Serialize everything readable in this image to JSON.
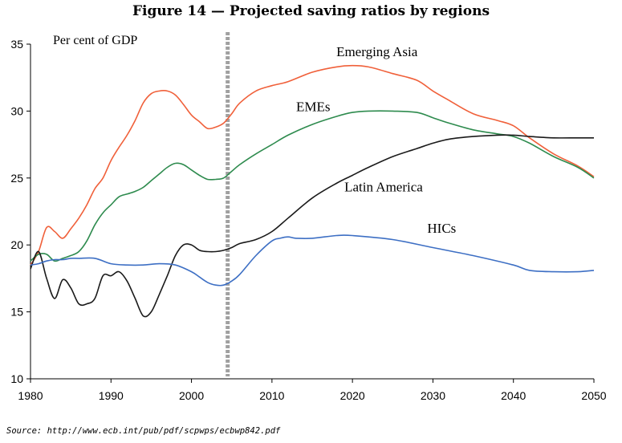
{
  "title": "Figure 14 — Projected saving ratios by regions",
  "source": "Source: http://www.ecb.int/pub/pdf/scpwps/ecbwp842.pdf",
  "chart_data": {
    "type": "line",
    "title": "Figure 14 — Projected saving ratios by regions",
    "ylabel": "Per cent of GDP",
    "xlabel": "",
    "xlim": [
      1980,
      2050
    ],
    "ylim": [
      10,
      35
    ],
    "xticks": [
      1980,
      1990,
      2000,
      2010,
      2020,
      2030,
      2040,
      2050
    ],
    "yticks": [
      10,
      15,
      20,
      25,
      30,
      35
    ],
    "vline": 2004.5,
    "series": [
      {
        "name": "Emerging Asia",
        "color": "#f0603a",
        "x": [
          1980,
          1981,
          1982,
          1983,
          1984,
          1985,
          1986,
          1987,
          1988,
          1989,
          1990,
          1991,
          1992,
          1993,
          1994,
          1995,
          1996,
          1997,
          1998,
          1999,
          2000,
          2001,
          2002,
          2003,
          2004,
          2005,
          2006,
          2008,
          2010,
          2012,
          2015,
          2018,
          2020,
          2022,
          2025,
          2028,
          2030,
          2032,
          2035,
          2038,
          2040,
          2042,
          2045,
          2048,
          2050
        ],
        "y": [
          18.5,
          19.5,
          21.3,
          21.0,
          20.5,
          21.2,
          22.0,
          23.0,
          24.2,
          25.0,
          26.3,
          27.3,
          28.2,
          29.3,
          30.6,
          31.3,
          31.5,
          31.5,
          31.2,
          30.5,
          29.7,
          29.2,
          28.7,
          28.8,
          29.1,
          29.8,
          30.6,
          31.5,
          31.9,
          32.2,
          32.9,
          33.3,
          33.4,
          33.3,
          32.8,
          32.3,
          31.5,
          30.8,
          29.8,
          29.3,
          28.9,
          28.0,
          26.8,
          25.9,
          25.1
        ]
      },
      {
        "name": "EMEs",
        "color": "#2e8b4e",
        "x": [
          1980,
          1981,
          1982,
          1983,
          1984,
          1985,
          1986,
          1987,
          1988,
          1989,
          1990,
          1991,
          1992,
          1993,
          1994,
          1995,
          1996,
          1997,
          1998,
          1999,
          2000,
          2001,
          2002,
          2003,
          2004,
          2005,
          2006,
          2008,
          2010,
          2012,
          2015,
          2018,
          2020,
          2022,
          2025,
          2028,
          2030,
          2032,
          2035,
          2038,
          2040,
          2042,
          2045,
          2048,
          2050
        ],
        "y": [
          18.8,
          19.3,
          19.3,
          18.8,
          19.0,
          19.2,
          19.5,
          20.3,
          21.5,
          22.4,
          23.0,
          23.6,
          23.8,
          24.0,
          24.3,
          24.8,
          25.3,
          25.8,
          26.1,
          26.0,
          25.6,
          25.2,
          24.9,
          24.9,
          25.0,
          25.5,
          26.0,
          26.8,
          27.5,
          28.2,
          29.0,
          29.6,
          29.9,
          30.0,
          30.0,
          29.9,
          29.5,
          29.1,
          28.6,
          28.3,
          28.1,
          27.6,
          26.6,
          25.8,
          25.0
        ]
      },
      {
        "name": "Latin America",
        "color": "#1a1a1a",
        "x": [
          1980,
          1981,
          1982,
          1983,
          1984,
          1985,
          1986,
          1987,
          1988,
          1989,
          1990,
          1991,
          1992,
          1993,
          1994,
          1995,
          1996,
          1997,
          1998,
          1999,
          2000,
          2001,
          2002,
          2003,
          2004,
          2005,
          2006,
          2008,
          2010,
          2012,
          2015,
          2018,
          2020,
          2022,
          2025,
          2028,
          2030,
          2032,
          2035,
          2038,
          2040,
          2042,
          2045,
          2048,
          2050
        ],
        "y": [
          18.2,
          19.5,
          17.5,
          16.0,
          17.4,
          16.8,
          15.6,
          15.6,
          16.0,
          17.7,
          17.7,
          18.0,
          17.3,
          16.0,
          14.7,
          15.0,
          16.3,
          17.7,
          19.2,
          20.0,
          20.0,
          19.6,
          19.5,
          19.5,
          19.6,
          19.8,
          20.1,
          20.4,
          21.0,
          22.0,
          23.5,
          24.6,
          25.2,
          25.8,
          26.6,
          27.2,
          27.6,
          27.9,
          28.1,
          28.2,
          28.2,
          28.1,
          28.0,
          28.0,
          28.0
        ]
      },
      {
        "name": "HICs",
        "color": "#3d6fc4",
        "x": [
          1980,
          1981,
          1982,
          1983,
          1984,
          1985,
          1986,
          1988,
          1990,
          1992,
          1994,
          1996,
          1998,
          2000,
          2001,
          2002,
          2003,
          2004,
          2005,
          2006,
          2008,
          2010,
          2011,
          2012,
          2013,
          2015,
          2018,
          2020,
          2025,
          2030,
          2035,
          2040,
          2042,
          2045,
          2048,
          2050
        ],
        "y": [
          18.5,
          18.6,
          18.8,
          18.9,
          18.9,
          19.0,
          19.0,
          19.0,
          18.6,
          18.5,
          18.5,
          18.6,
          18.5,
          18.0,
          17.6,
          17.2,
          17.0,
          17.0,
          17.3,
          17.8,
          19.2,
          20.3,
          20.5,
          20.6,
          20.5,
          20.5,
          20.7,
          20.7,
          20.4,
          19.8,
          19.2,
          18.5,
          18.1,
          18.0,
          18.0,
          18.1
        ]
      }
    ],
    "series_labels": [
      {
        "name": "Emerging Asia",
        "x": 2018,
        "y": 34.1
      },
      {
        "name": "EMEs",
        "x": 2013,
        "y": 30.0
      },
      {
        "name": "Latin America",
        "x": 2019,
        "y": 24.0
      },
      {
        "name": "HICs",
        "x": 2029.3,
        "y": 20.9
      }
    ]
  }
}
